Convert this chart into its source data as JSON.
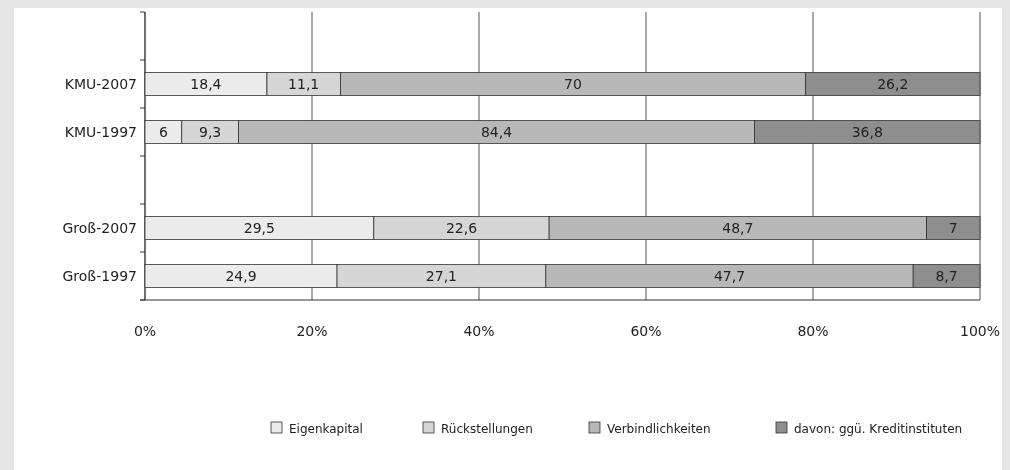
{
  "chart_data": {
    "type": "bar",
    "orientation": "horizontal",
    "stacked": true,
    "categories": [
      null,
      "KMU-2007",
      "KMU-1997",
      null,
      "Groß-2007",
      "Groß-1997"
    ],
    "series": [
      {
        "name": "Eigenkapital",
        "color": "#ececec",
        "values": [
          null,
          14.6,
          4.4,
          null,
          27.4,
          23.0
        ]
      },
      {
        "name": "Rückstellungen",
        "color": "#d6d6d6",
        "values": [
          null,
          8.8,
          6.8,
          null,
          21.0,
          25.0
        ]
      },
      {
        "name": "Verbindlichkeiten",
        "color": "#b8b8b8",
        "values": [
          null,
          55.7,
          61.8,
          null,
          45.2,
          44.0
        ]
      },
      {
        "name": "davon: ggü. Kreditinstituten",
        "color": "#8e8e8e",
        "values": [
          null,
          20.9,
          27.0,
          null,
          6.4,
          8.0
        ]
      }
    ],
    "annotations": [
      "18,4",
      "11,1",
      "70",
      "26,2",
      "6",
      "9,3",
      "84,4",
      "36,8",
      "29,5",
      "22,6",
      "48,7",
      "7",
      "24,9",
      "27,1",
      "47,7",
      "8,7"
    ],
    "xlim": [
      0,
      100
    ],
    "xticks": [
      {
        "value": 0,
        "label": "0%"
      },
      {
        "value": 20,
        "label": "20%"
      },
      {
        "value": 40,
        "label": "40%"
      },
      {
        "value": 60,
        "label": "60%"
      },
      {
        "value": 80,
        "label": "80%"
      },
      {
        "value": 100,
        "label": "100%"
      }
    ],
    "grid": "x",
    "legend": "bottom"
  }
}
